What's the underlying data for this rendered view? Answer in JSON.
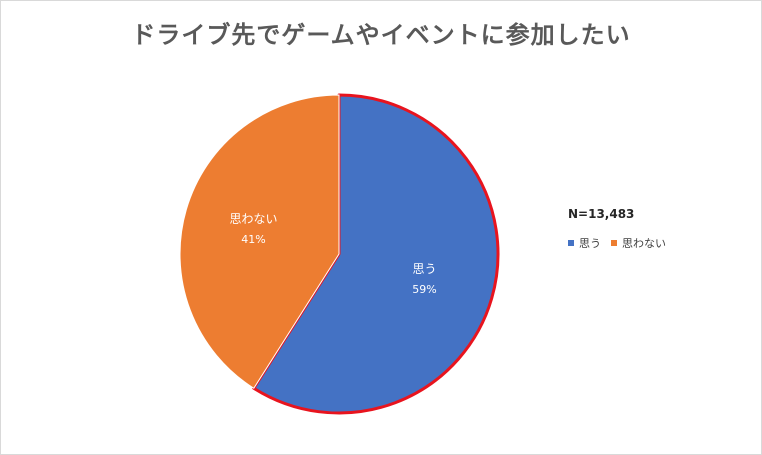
{
  "chart_data": {
    "type": "pie",
    "title": "ドライブ先でゲームやイベントに参加したい",
    "note": "N=13,483",
    "slices": [
      {
        "label": "思う",
        "value": 59,
        "value_label": "59%",
        "color": "#4472C4",
        "highlight_border": "#E8141E"
      },
      {
        "label": "思わない",
        "value": 41,
        "value_label": "41%",
        "color": "#ED7D31"
      }
    ],
    "legend": {
      "placement": "right",
      "entries": [
        "思う",
        "思わない"
      ]
    }
  }
}
